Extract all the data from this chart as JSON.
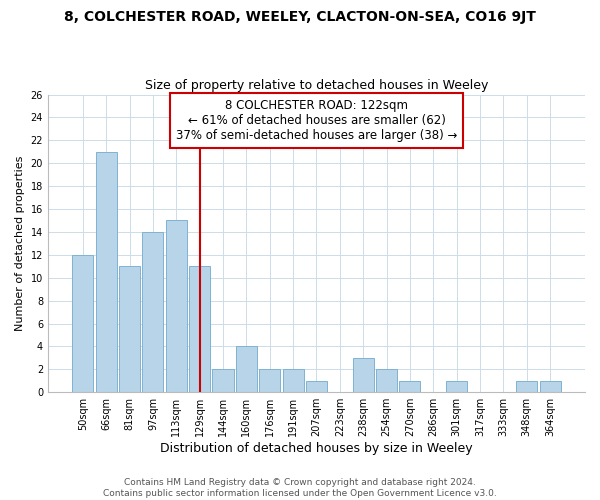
{
  "title": "8, COLCHESTER ROAD, WEELEY, CLACTON-ON-SEA, CO16 9JT",
  "subtitle": "Size of property relative to detached houses in Weeley",
  "xlabel": "Distribution of detached houses by size in Weeley",
  "ylabel": "Number of detached properties",
  "categories": [
    "50sqm",
    "66sqm",
    "81sqm",
    "97sqm",
    "113sqm",
    "129sqm",
    "144sqm",
    "160sqm",
    "176sqm",
    "191sqm",
    "207sqm",
    "223sqm",
    "238sqm",
    "254sqm",
    "270sqm",
    "286sqm",
    "301sqm",
    "317sqm",
    "333sqm",
    "348sqm",
    "364sqm"
  ],
  "values": [
    12,
    21,
    11,
    14,
    15,
    11,
    2,
    4,
    2,
    2,
    1,
    0,
    3,
    2,
    1,
    0,
    1,
    0,
    0,
    1,
    1
  ],
  "bar_color": "#b8d4e8",
  "bar_edge_color": "#7fb3d3",
  "annotation_line1": "8 COLCHESTER ROAD: 122sqm",
  "annotation_line2": "← 61% of detached houses are smaller (62)",
  "annotation_line3": "37% of semi-detached houses are larger (38) →",
  "annotation_box_color": "#ffffff",
  "annotation_box_edge": "#cc0000",
  "property_vline_color": "#cc0000",
  "property_vline_x": 5,
  "ylim": [
    0,
    26
  ],
  "yticks": [
    0,
    2,
    4,
    6,
    8,
    10,
    12,
    14,
    16,
    18,
    20,
    22,
    24,
    26
  ],
  "footer_line1": "Contains HM Land Registry data © Crown copyright and database right 2024.",
  "footer_line2": "Contains public sector information licensed under the Open Government Licence v3.0.",
  "bg_color": "#ffffff",
  "grid_color": "#ccdde8",
  "title_fontsize": 10,
  "subtitle_fontsize": 9,
  "xlabel_fontsize": 9,
  "ylabel_fontsize": 8,
  "tick_fontsize": 7,
  "footer_fontsize": 6.5,
  "annotation_fontsize": 8.5
}
